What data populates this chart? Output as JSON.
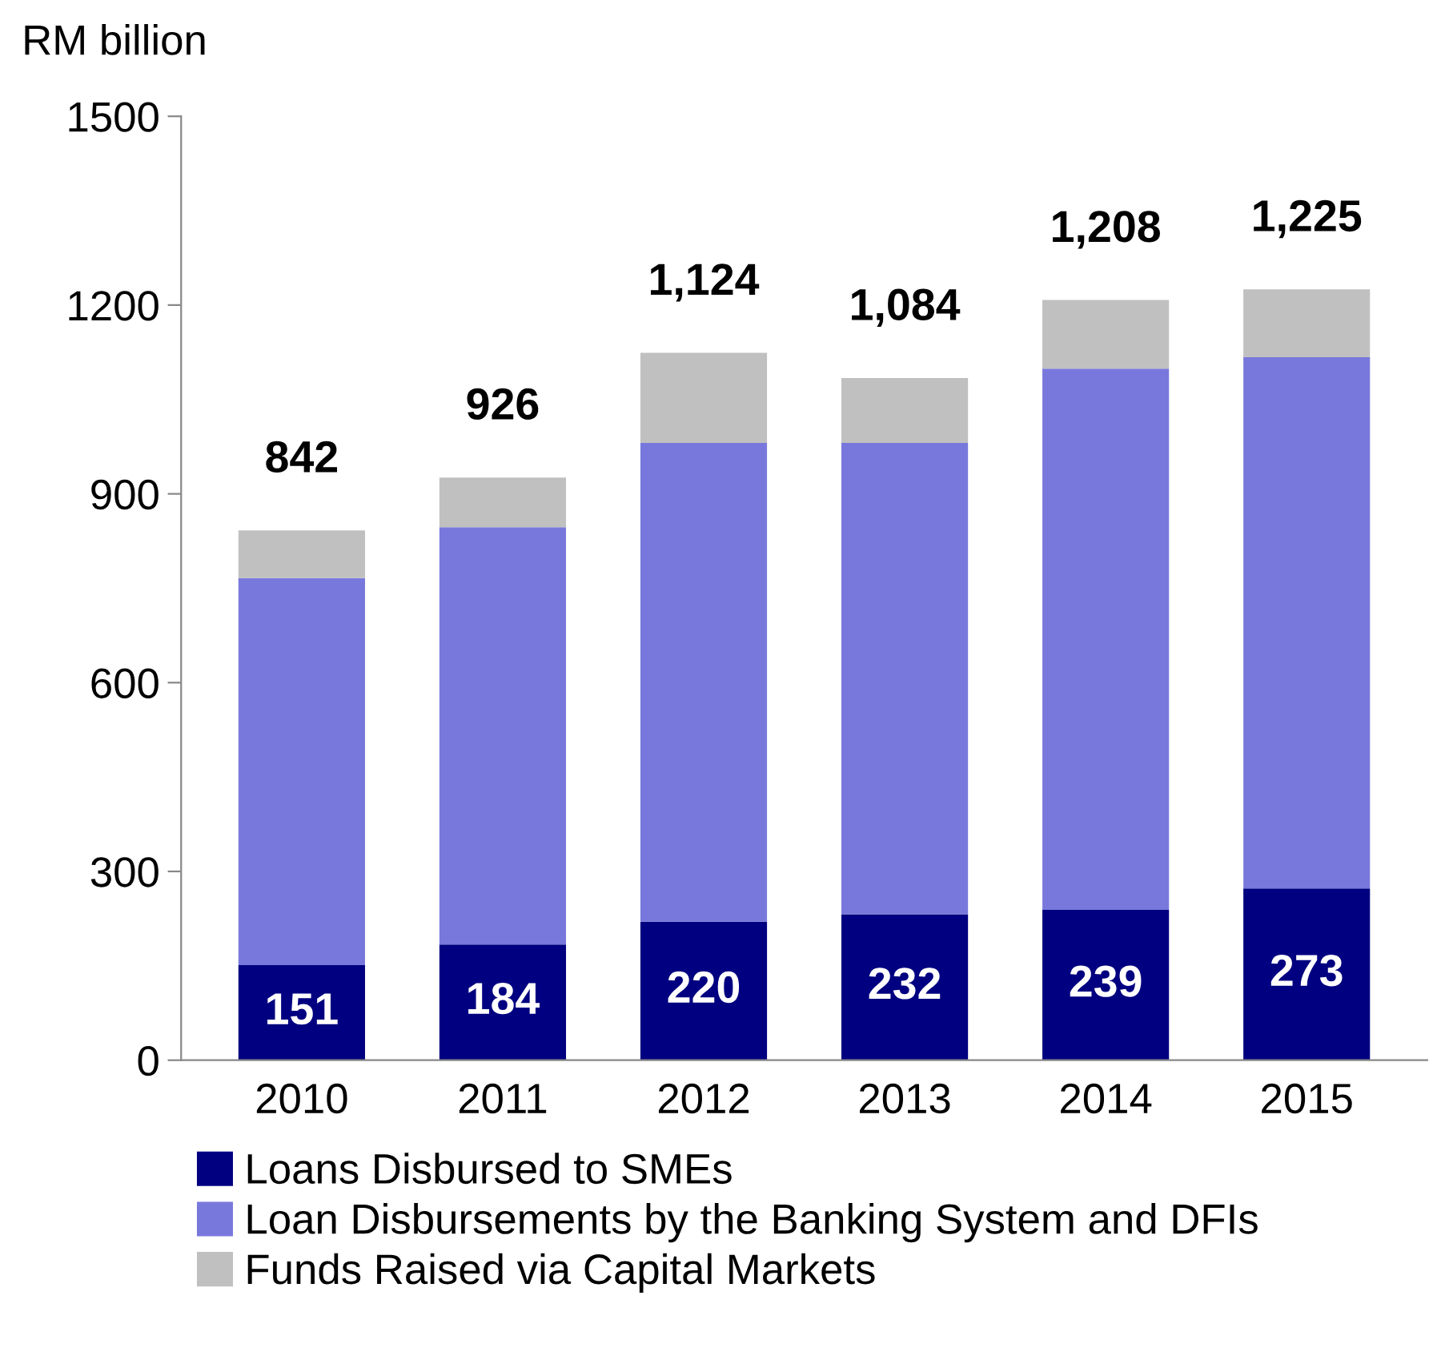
{
  "chart_data": {
    "type": "bar",
    "stacked": true,
    "ylabel": "RM billion",
    "categories": [
      "2010",
      "2011",
      "2012",
      "2013",
      "2014",
      "2015"
    ],
    "series": [
      {
        "name": "Loans Disbursed to SMEs",
        "color": "#000080",
        "values": [
          151,
          184,
          220,
          232,
          239,
          273
        ],
        "value_labels": [
          "151",
          "184",
          "220",
          "232",
          "239",
          "273"
        ]
      },
      {
        "name": "Loan Disbursements by the Banking System and DFIs",
        "color": "#7878dc",
        "values": [
          615,
          663,
          761,
          749,
          860,
          844
        ]
      },
      {
        "name": "Funds Raised via Capital Markets",
        "color": "#c0c0c0",
        "values": [
          76,
          79,
          143,
          103,
          109,
          108
        ]
      }
    ],
    "totals": [
      "842",
      "926",
      "1,124",
      "1,084",
      "1,208",
      "1,225"
    ],
    "ylim": [
      0,
      1500
    ],
    "yticks": [
      0,
      300,
      600,
      900,
      1200,
      1500
    ],
    "grid": false,
    "legend": "bottom"
  }
}
